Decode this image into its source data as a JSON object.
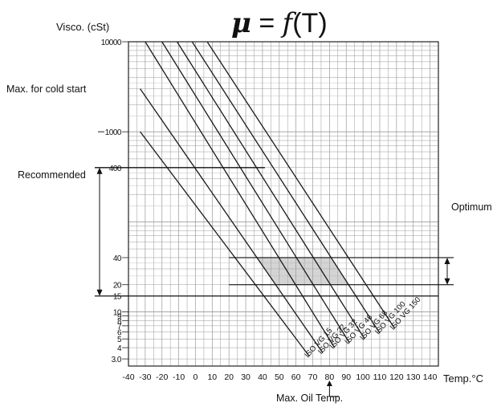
{
  "chart_data": {
    "type": "line",
    "title": {
      "mu": "μ",
      "eq": " = ",
      "f": "f",
      "arg": "(T)"
    },
    "ylabel": "Visco. (cSt)",
    "xlabel": "Temp.°C",
    "y_scale": "log",
    "ylim": [
      2.5,
      10000
    ],
    "xlim": [
      -40,
      145
    ],
    "x_ticks": [
      -40,
      -30,
      -20,
      -10,
      0,
      10,
      20,
      30,
      40,
      50,
      60,
      70,
      80,
      90,
      100,
      110,
      120,
      130,
      140
    ],
    "y_tick_labels": [
      {
        "value": 10000,
        "text": "10000"
      },
      {
        "value": 1000,
        "text": "1000"
      },
      {
        "value": 400,
        "text": "400"
      },
      {
        "value": 40,
        "text": "40"
      },
      {
        "value": 20,
        "text": "20"
      },
      {
        "value": 15,
        "text": "15"
      },
      {
        "value": 10,
        "text": "10"
      },
      {
        "value": 9,
        "text": "9"
      },
      {
        "value": 8,
        "text": "8"
      },
      {
        "value": 7,
        "text": "7"
      },
      {
        "value": 6,
        "text": "6"
      },
      {
        "value": 5,
        "text": "5"
      },
      {
        "value": 4,
        "text": "4"
      },
      {
        "value": 3,
        "text": "3.0"
      }
    ],
    "series": [
      {
        "name": "ISO VG 15",
        "points": [
          [
            -33,
            1000
          ],
          [
            68,
            3.2
          ]
        ]
      },
      {
        "name": "ISO VG 22",
        "points": [
          [
            -33,
            3000
          ],
          [
            76,
            3.5
          ]
        ]
      },
      {
        "name": "ISO VG 32",
        "points": [
          [
            -30,
            10000
          ],
          [
            83,
            4.0
          ]
        ]
      },
      {
        "name": "ISO VG 46",
        "points": [
          [
            -20,
            10000
          ],
          [
            92,
            4.5
          ]
        ]
      },
      {
        "name": "ISO VG 68",
        "points": [
          [
            -11,
            10000
          ],
          [
            101,
            5.0
          ]
        ]
      },
      {
        "name": "ISO VG 100",
        "points": [
          [
            -2,
            10000
          ],
          [
            110,
            5.8
          ]
        ]
      },
      {
        "name": "ISO VG 150",
        "points": [
          [
            7,
            10000
          ],
          [
            119,
            6.5
          ]
        ]
      }
    ],
    "optimum_region": {
      "temp": [
        20,
        80
      ],
      "visc": [
        20,
        40
      ]
    },
    "annotations": {
      "max_cold_start": {
        "label": "Max. for cold start",
        "value": 1000
      },
      "recommended": {
        "label": "Recommended",
        "range": [
          15,
          400
        ]
      },
      "optimum": {
        "label": "Optimum",
        "range": [
          20,
          40
        ]
      },
      "max_oil_temp": {
        "label": "Max. Oil Temp.",
        "value": 80
      }
    },
    "grid": true
  }
}
